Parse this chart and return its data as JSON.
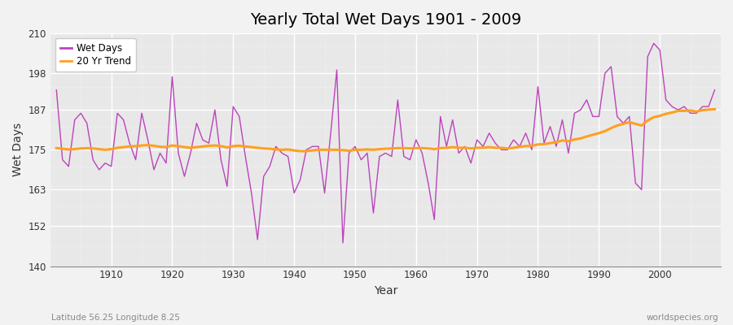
{
  "title": "Yearly Total Wet Days 1901 - 2009",
  "xlabel": "Year",
  "ylabel": "Wet Days",
  "subtitle": "Latitude 56.25 Longitude 8.25",
  "watermark": "worldspecies.org",
  "xlim": [
    1901,
    2009
  ],
  "ylim": [
    140,
    210
  ],
  "yticks": [
    140,
    152,
    163,
    175,
    187,
    198,
    210
  ],
  "xticks": [
    1910,
    1920,
    1930,
    1940,
    1950,
    1960,
    1970,
    1980,
    1990,
    2000
  ],
  "line_color": "#BB44BB",
  "trend_color": "#FFA020",
  "bg_color": "#E8E8E8",
  "fig_color": "#F2F2F2",
  "years": [
    1901,
    1902,
    1903,
    1904,
    1905,
    1906,
    1907,
    1908,
    1909,
    1910,
    1911,
    1912,
    1913,
    1914,
    1915,
    1916,
    1917,
    1918,
    1919,
    1920,
    1921,
    1922,
    1923,
    1924,
    1925,
    1926,
    1927,
    1928,
    1929,
    1930,
    1931,
    1932,
    1933,
    1934,
    1935,
    1936,
    1937,
    1938,
    1939,
    1940,
    1941,
    1942,
    1943,
    1944,
    1945,
    1946,
    1947,
    1948,
    1949,
    1950,
    1951,
    1952,
    1953,
    1954,
    1955,
    1956,
    1957,
    1958,
    1959,
    1960,
    1961,
    1962,
    1963,
    1964,
    1965,
    1966,
    1967,
    1968,
    1969,
    1970,
    1971,
    1972,
    1973,
    1974,
    1975,
    1976,
    1977,
    1978,
    1979,
    1980,
    1981,
    1982,
    1983,
    1984,
    1985,
    1986,
    1987,
    1988,
    1989,
    1990,
    1991,
    1992,
    1993,
    1994,
    1995,
    1996,
    1997,
    1998,
    1999,
    2000,
    2001,
    2002,
    2003,
    2004,
    2005,
    2006,
    2007,
    2008,
    2009
  ],
  "wet_days": [
    193,
    172,
    170,
    184,
    186,
    183,
    172,
    169,
    171,
    170,
    186,
    184,
    177,
    172,
    186,
    178,
    169,
    174,
    171,
    197,
    174,
    167,
    174,
    183,
    178,
    177,
    187,
    172,
    164,
    188,
    185,
    173,
    162,
    148,
    167,
    170,
    176,
    174,
    173,
    162,
    166,
    175,
    176,
    176,
    162,
    180,
    199,
    147,
    174,
    176,
    172,
    174,
    156,
    173,
    174,
    173,
    190,
    173,
    172,
    178,
    174,
    165,
    154,
    185,
    176,
    184,
    174,
    176,
    171,
    178,
    176,
    180,
    177,
    175,
    175,
    178,
    176,
    180,
    175,
    194,
    177,
    182,
    176,
    184,
    174,
    186,
    187,
    190,
    185,
    185,
    198,
    200,
    185,
    183,
    185,
    165,
    163,
    203,
    207,
    205,
    190,
    188,
    187,
    188,
    186,
    186,
    188,
    188,
    193
  ],
  "trend_values": [
    175.5,
    175.3,
    175.1,
    175.2,
    175.4,
    175.5,
    175.4,
    175.2,
    175.0,
    175.2,
    175.6,
    175.8,
    176.0,
    176.1,
    176.3,
    176.4,
    176.2,
    175.9,
    175.8,
    176.3,
    176.1,
    175.8,
    175.6,
    175.8,
    176.0,
    176.2,
    176.3,
    176.1,
    175.7,
    176.1,
    176.2,
    176.0,
    175.8,
    175.6,
    175.4,
    175.3,
    175.1,
    175.0,
    175.1,
    174.8,
    174.6,
    174.6,
    174.8,
    175.0,
    175.0,
    175.0,
    175.0,
    174.9,
    174.7,
    175.0,
    175.0,
    175.1,
    175.0,
    175.2,
    175.3,
    175.4,
    175.5,
    175.5,
    175.4,
    175.5,
    175.5,
    175.4,
    175.2,
    175.5,
    175.6,
    175.8,
    175.6,
    175.6,
    175.4,
    175.6,
    175.6,
    175.8,
    175.6,
    175.6,
    175.4,
    175.6,
    175.9,
    176.1,
    176.2,
    176.6,
    176.7,
    177.0,
    177.3,
    177.8,
    177.6,
    178.1,
    178.4,
    179.0,
    179.5,
    180.0,
    180.6,
    181.5,
    182.3,
    182.8,
    183.3,
    182.8,
    182.3,
    183.8,
    184.8,
    185.2,
    185.8,
    186.2,
    186.7,
    186.7,
    186.8,
    186.5,
    186.9,
    187.1,
    187.2
  ]
}
